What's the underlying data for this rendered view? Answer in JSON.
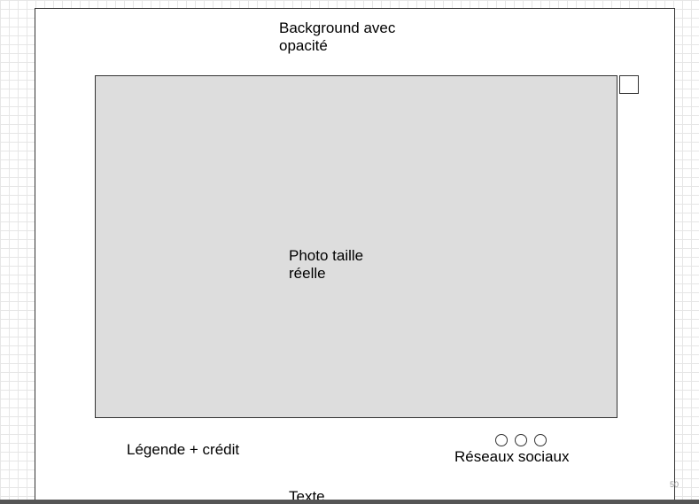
{
  "diagram": {
    "background_label": [
      "Background avec",
      "opacité"
    ],
    "photo_label": [
      "Photo taille",
      "réelle"
    ],
    "caption_label": "Légende + crédit",
    "social_label": "Réseaux sociaux",
    "text_label": "Texte",
    "zoom_text": "50",
    "social_icon_count": 3
  },
  "colors": {
    "photo_fill": "#dddddd",
    "stroke": "#333333",
    "grid": "#e6e6e6"
  }
}
